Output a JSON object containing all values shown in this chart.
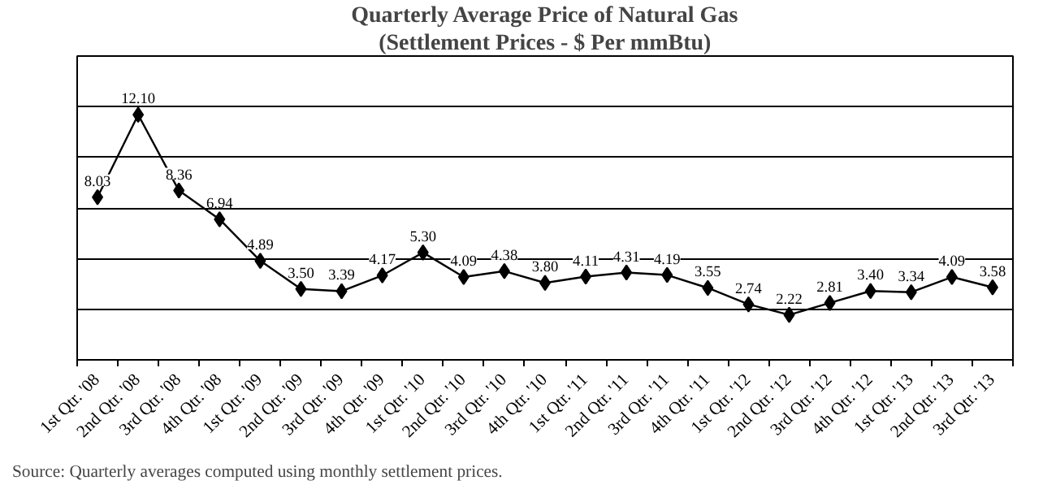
{
  "chart_data": {
    "type": "line",
    "title": "Quarterly Average Price of Natural Gas",
    "subtitle": "(Settlement Prices - $ Per mmBtu)",
    "categories": [
      "1st Qtr. '08",
      "2nd Qtr. '08",
      "3rd Qtr. '08",
      "4th Qtr. '08",
      "1st Qtr. '09",
      "2nd Qtr. '09",
      "3rd Qtr. '09",
      "4th Qtr. '09",
      "1st Qtr. '10",
      "2nd Qtr. '10",
      "3rd Qtr. '10",
      "4th Qtr. '10",
      "1st Qtr. '11",
      "2nd Qtr. '11",
      "3rd Qtr. '11",
      "4th Qtr. '11",
      "1st Qtr. '12",
      "2nd Qtr. '12",
      "3rd Qtr. '12",
      "4th Qtr. '12",
      "1st Qtr. '13",
      "2nd Qtr. '13",
      "3rd Qtr. '13"
    ],
    "series": [
      {
        "color": "#000000",
        "values": [
          8.03,
          12.1,
          8.36,
          6.94,
          4.89,
          3.5,
          3.39,
          4.17,
          5.3,
          4.09,
          4.38,
          3.8,
          4.11,
          4.31,
          4.19,
          3.55,
          2.74,
          2.22,
          2.81,
          3.4,
          3.34,
          4.09,
          3.58
        ],
        "value_labels": [
          "8.03",
          "12.10",
          "8.36",
          "6.94",
          "4.89",
          "3.50",
          "3.39",
          "4.17",
          "5.30",
          "4.09",
          "4.38",
          "3.80",
          "4.11",
          "4.31",
          "4.19",
          "3.55",
          "2.74",
          "2.22",
          "2.81",
          "3.40",
          "3.34",
          "4.09",
          "3.58"
        ]
      }
    ],
    "ylim": [
      0,
      15
    ],
    "yticks": [
      {
        "value": 0,
        "label": null
      },
      {
        "value": 2.5,
        "label": null
      },
      {
        "value": 5,
        "label": null
      },
      {
        "value": 7.5,
        "label": null
      },
      {
        "value": 10,
        "label": null
      },
      {
        "value": 12.5,
        "label": null
      },
      {
        "value": 15,
        "label": null
      }
    ],
    "grid": "y",
    "tick_labels": "x",
    "marker": "diamond",
    "line_style": "solid",
    "annotations": [
      "Source:  Quarterly averages computed using monthly settlement prices."
    ]
  }
}
